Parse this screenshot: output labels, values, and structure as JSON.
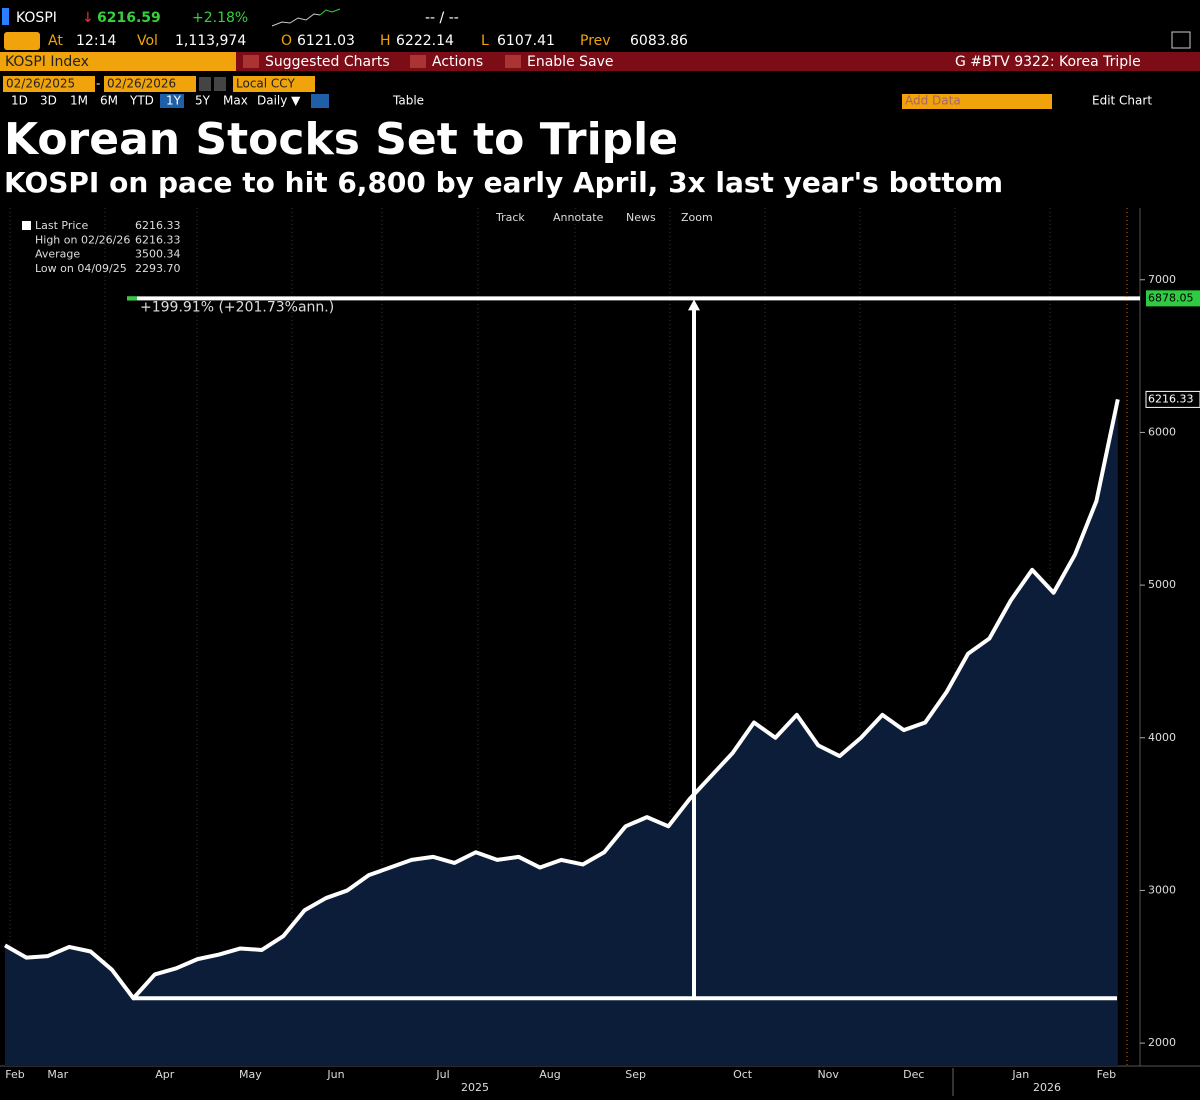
{
  "header": {
    "ticker": "KOSPI",
    "direction": "↓",
    "price": "6216.59",
    "change": "+2.18%",
    "bid_ask": "-- / --",
    "quote": [
      [
        "At",
        "12:14"
      ],
      [
        "Vol",
        "1,113,974"
      ],
      [
        "O",
        "6121.03"
      ],
      [
        "H",
        "6222.14"
      ],
      [
        "L",
        "6107.41"
      ],
      [
        "Prev",
        "6083.86"
      ]
    ],
    "security": "KOSPI Index",
    "menu": [
      "Suggested Charts",
      "Actions",
      "Enable Save"
    ],
    "page": "G #BTV 9322: Korea Triple",
    "start_date": "02/26/2025",
    "date_sep": "-",
    "end_date": "02/26/2026",
    "currency": "Local CCY",
    "periods": [
      "1D",
      "3D",
      "1M",
      "6M",
      "YTD",
      "1Y",
      "5Y",
      "Max"
    ],
    "frequency": "Daily ▼",
    "table": "Table",
    "add_data": "Add Data",
    "edit_chart": "Edit Chart",
    "toolbar": [
      "Track",
      "Annotate",
      "News",
      "Zoom"
    ]
  },
  "chart_data": {
    "type": "area-line",
    "title": "Korean Stocks Set to Triple",
    "subtitle": "KOSPI on pace to hit 6,800 by early April, 3x last year's bottom",
    "categories": [
      "Feb",
      null,
      "Mar",
      null,
      null,
      null,
      null,
      "Apr",
      null,
      null,
      null,
      "May",
      null,
      null,
      null,
      "Jun",
      null,
      null,
      null,
      null,
      "Jul",
      null,
      null,
      null,
      null,
      "Aug",
      null,
      null,
      null,
      "Sep",
      null,
      null,
      null,
      null,
      "Oct",
      null,
      null,
      null,
      "Nov",
      null,
      null,
      null,
      "Dec",
      null,
      null,
      null,
      null,
      "Jan",
      null,
      null,
      null,
      "Feb",
      null
    ],
    "year_labels": [
      "2025",
      "2026"
    ],
    "series": [
      {
        "name": "Last Price",
        "color": "#ffffff",
        "fill": "#0b1d38",
        "values": [
          2640,
          2560,
          2570,
          2630,
          2600,
          2480,
          2293.7,
          2450,
          2490,
          2550,
          2580,
          2620,
          2610,
          2700,
          2870,
          2950,
          3000,
          3100,
          3150,
          3200,
          3220,
          3180,
          3250,
          3200,
          3220,
          3150,
          3200,
          3170,
          3250,
          3420,
          3480,
          3420,
          3600,
          3750,
          3900,
          4100,
          4000,
          4150,
          3950,
          3880,
          4000,
          4150,
          4050,
          4100,
          4300,
          4550,
          4650,
          4900,
          5100,
          4950,
          5200,
          5550,
          6216.33
        ]
      }
    ],
    "stats": {
      "labels": [
        "Last Price",
        "High on 02/26/26",
        "Average",
        "Low on 04/09/25"
      ],
      "values": [
        6216.33,
        6216.33,
        3500.34,
        2293.7
      ],
      "value_labels": [
        "6216.33",
        "6216.33",
        "3500.34",
        "2293.70"
      ]
    },
    "target": 6878.05,
    "target_color": "#2ecc40",
    "annotation": "+199.91% (+201.73%ann.)",
    "ylim": [
      1850,
      7470
    ],
    "yticks": [
      2000,
      3000,
      4000,
      5000,
      6000,
      7000
    ]
  }
}
